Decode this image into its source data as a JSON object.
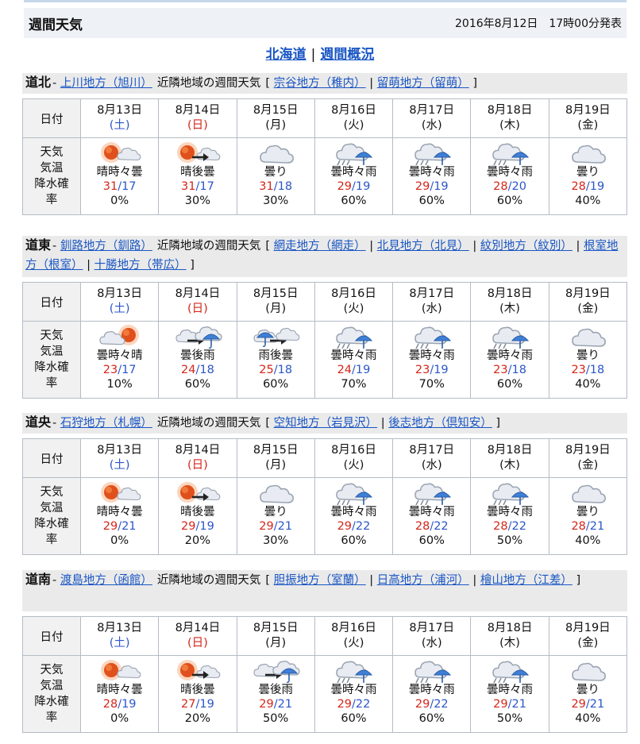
{
  "header": {
    "title": "週間天気",
    "issued": "2016年8月12日　17時00分発表"
  },
  "nav": {
    "link1": "北海道",
    "sep": "|",
    "link2": "週間概況"
  },
  "labels": {
    "date_header": "日付",
    "data_header_lines": [
      "天気",
      "気温",
      "降水確",
      "率"
    ],
    "nearby": "近隣地域の週間天気",
    "open_bracket": "[",
    "close_bracket": "]",
    "sep": "|",
    "dash": "-",
    "temp_sep": "/"
  },
  "dates": [
    {
      "date": "8月13日",
      "dow": "(土)",
      "kind": "sat"
    },
    {
      "date": "8月14日",
      "dow": "(日)",
      "kind": "sun"
    },
    {
      "date": "8月15日",
      "dow": "(月)",
      "kind": ""
    },
    {
      "date": "8月16日",
      "dow": "(火)",
      "kind": ""
    },
    {
      "date": "8月17日",
      "dow": "(水)",
      "kind": ""
    },
    {
      "date": "8月18日",
      "dow": "(木)",
      "kind": ""
    },
    {
      "date": "8月19日",
      "dow": "(金)",
      "kind": ""
    }
  ],
  "regions": [
    {
      "name": "道北",
      "main_link": "上川地方（旭川）",
      "nearby_links": [
        "宗谷地方（稚内）",
        "留萌地方（留萌）"
      ],
      "days": [
        {
          "icon": "sun-then-cloud-icon",
          "weather": "晴時々曇",
          "high": "31",
          "low": "17",
          "pop": "0%"
        },
        {
          "icon": "sun-after-cloud-icon",
          "weather": "晴後曇",
          "high": "31",
          "low": "17",
          "pop": "30%"
        },
        {
          "icon": "cloud-icon",
          "weather": "曇り",
          "high": "31",
          "low": "18",
          "pop": "30%"
        },
        {
          "icon": "cloud-rain-icon",
          "weather": "曇時々雨",
          "high": "29",
          "low": "19",
          "pop": "60%"
        },
        {
          "icon": "cloud-rain-icon",
          "weather": "曇時々雨",
          "high": "29",
          "low": "19",
          "pop": "60%"
        },
        {
          "icon": "cloud-rain-icon",
          "weather": "曇時々雨",
          "high": "28",
          "low": "20",
          "pop": "60%"
        },
        {
          "icon": "cloud-icon",
          "weather": "曇り",
          "high": "28",
          "low": "19",
          "pop": "40%"
        }
      ]
    },
    {
      "name": "道東",
      "main_link": "釧路地方（釧路）",
      "nearby_links": [
        "網走地方（網走）",
        "北見地方（北見）",
        "紋別地方（紋別）",
        "根室地方（根室）",
        "十勝地方（帯広）"
      ],
      "days": [
        {
          "icon": "cloud-then-sun-icon",
          "weather": "曇時々晴",
          "high": "23",
          "low": "17",
          "pop": "10%"
        },
        {
          "icon": "cloud-after-rain-icon",
          "weather": "曇後雨",
          "high": "24",
          "low": "18",
          "pop": "60%"
        },
        {
          "icon": "rain-after-cloud-icon",
          "weather": "雨後曇",
          "high": "25",
          "low": "18",
          "pop": "60%"
        },
        {
          "icon": "cloud-rain-icon",
          "weather": "曇時々雨",
          "high": "24",
          "low": "19",
          "pop": "70%"
        },
        {
          "icon": "cloud-rain-icon",
          "weather": "曇時々雨",
          "high": "23",
          "low": "19",
          "pop": "70%"
        },
        {
          "icon": "cloud-rain-icon",
          "weather": "曇時々雨",
          "high": "23",
          "low": "18",
          "pop": "60%"
        },
        {
          "icon": "cloud-icon",
          "weather": "曇り",
          "high": "23",
          "low": "18",
          "pop": "40%"
        }
      ]
    },
    {
      "name": "道央",
      "main_link": "石狩地方（札幌）",
      "nearby_links": [
        "空知地方（岩見沢）",
        "後志地方（倶知安）"
      ],
      "days": [
        {
          "icon": "sun-then-cloud-icon",
          "weather": "晴時々曇",
          "high": "29",
          "low": "21",
          "pop": "0%"
        },
        {
          "icon": "sun-after-cloud-icon",
          "weather": "晴後曇",
          "high": "29",
          "low": "19",
          "pop": "20%"
        },
        {
          "icon": "cloud-icon",
          "weather": "曇り",
          "high": "29",
          "low": "21",
          "pop": "30%"
        },
        {
          "icon": "cloud-rain-icon",
          "weather": "曇時々雨",
          "high": "29",
          "low": "22",
          "pop": "60%"
        },
        {
          "icon": "cloud-rain-icon",
          "weather": "曇時々雨",
          "high": "28",
          "low": "22",
          "pop": "60%"
        },
        {
          "icon": "cloud-rain-icon",
          "weather": "曇時々雨",
          "high": "28",
          "low": "22",
          "pop": "50%"
        },
        {
          "icon": "cloud-icon",
          "weather": "曇り",
          "high": "28",
          "low": "21",
          "pop": "40%"
        }
      ]
    },
    {
      "name": "道南",
      "main_link": "渡島地方（函館）",
      "nearby_links": [
        "胆振地方（室蘭）",
        "日高地方（浦河）",
        "檜山地方（江差）"
      ],
      "days": [
        {
          "icon": "sun-then-cloud-icon",
          "weather": "晴時々曇",
          "high": "28",
          "low": "19",
          "pop": "0%"
        },
        {
          "icon": "sun-after-cloud-icon",
          "weather": "晴後曇",
          "high": "27",
          "low": "19",
          "pop": "20%"
        },
        {
          "icon": "cloud-after-rain-icon",
          "weather": "曇後雨",
          "high": "29",
          "low": "21",
          "pop": "50%"
        },
        {
          "icon": "cloud-rain-icon",
          "weather": "曇時々雨",
          "high": "29",
          "low": "22",
          "pop": "60%"
        },
        {
          "icon": "cloud-rain-icon",
          "weather": "曇時々雨",
          "high": "29",
          "low": "22",
          "pop": "60%"
        },
        {
          "icon": "cloud-rain-icon",
          "weather": "曇時々雨",
          "high": "29",
          "low": "21",
          "pop": "50%"
        },
        {
          "icon": "cloud-icon",
          "weather": "曇り",
          "high": "29",
          "low": "21",
          "pop": "40%"
        }
      ]
    }
  ]
}
